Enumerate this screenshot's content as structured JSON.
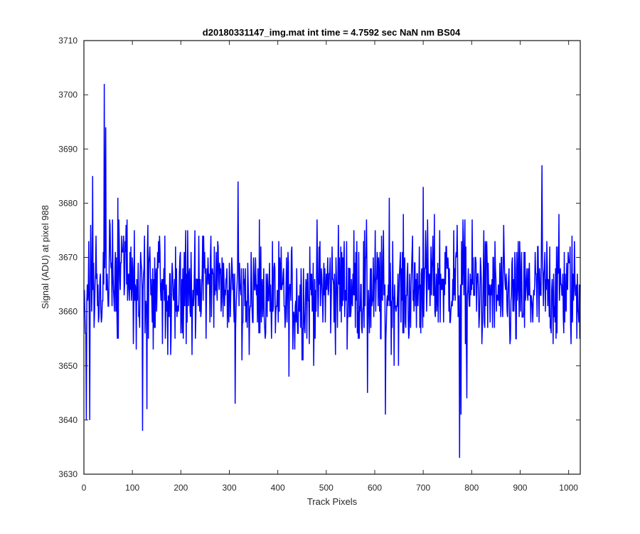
{
  "chart_data": {
    "type": "line",
    "title": "d20180331147_img.mat int time = 4.7592 sec  NaN nm BS04",
    "xlabel": "Track Pixels",
    "ylabel": "Signal (ADU) at pixel 988",
    "xlim": [
      0,
      1024
    ],
    "ylim": [
      3630,
      3710
    ],
    "xticks": [
      0,
      100,
      200,
      300,
      400,
      500,
      600,
      700,
      800,
      900,
      1000
    ],
    "yticks": [
      3630,
      3640,
      3650,
      3660,
      3670,
      3680,
      3690,
      3700,
      3710
    ],
    "grid": false,
    "legend": "none",
    "series": [
      {
        "color": "#0000ff",
        "x_start": 1,
        "x_step": 1,
        "stats": {
          "baseline": 3664,
          "typical_min": 3650,
          "typical_max": 3678
        },
        "peaks": [
          {
            "x": 42,
            "y": 3702
          },
          {
            "x": 45,
            "y": 3694
          },
          {
            "x": 18,
            "y": 3685
          },
          {
            "x": 70,
            "y": 3681
          },
          {
            "x": 318,
            "y": 3684
          },
          {
            "x": 945,
            "y": 3687
          },
          {
            "x": 700,
            "y": 3683
          },
          {
            "x": 630,
            "y": 3681
          }
        ],
        "troughs": [
          {
            "x": 5,
            "y": 3640
          },
          {
            "x": 12,
            "y": 3640
          },
          {
            "x": 121,
            "y": 3638
          },
          {
            "x": 130,
            "y": 3642
          },
          {
            "x": 312,
            "y": 3643
          },
          {
            "x": 622,
            "y": 3641
          },
          {
            "x": 775,
            "y": 3633
          },
          {
            "x": 778,
            "y": 3641
          },
          {
            "x": 790,
            "y": 3644
          },
          {
            "x": 585,
            "y": 3645
          }
        ]
      }
    ]
  }
}
